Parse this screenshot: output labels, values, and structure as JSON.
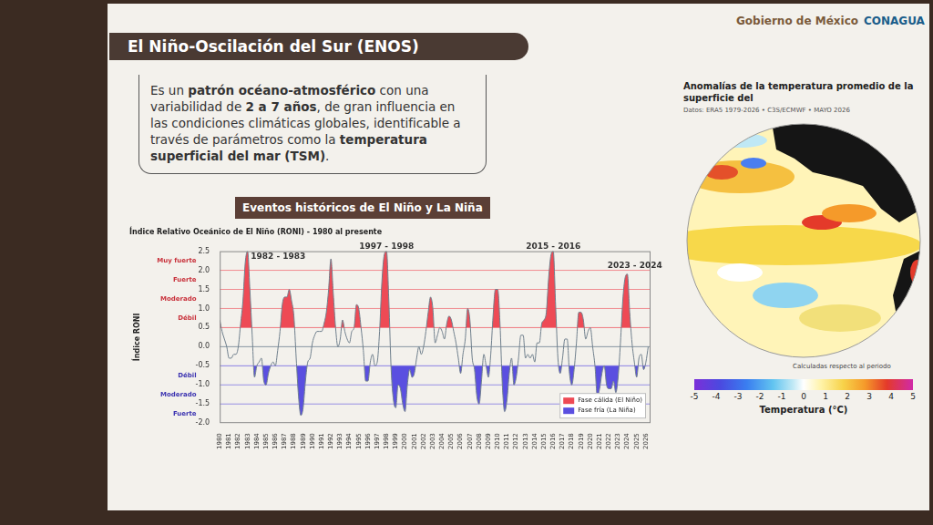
{
  "header": {
    "title": "El Niño-Oscilación del Sur (ENOS)",
    "logos": [
      "Gobierno de México",
      "CONAGUA"
    ]
  },
  "description": [
    {
      "text": "Es un ",
      "bold": false
    },
    {
      "text": "patrón océano-atmosférico",
      "bold": true
    },
    {
      "text": " con una variabilidad de ",
      "bold": false
    },
    {
      "text": "2 a 7 años",
      "bold": true
    },
    {
      "text": ", de gran influencia en las condiciones climáticas globales, identificable a través de parámetros como la ",
      "bold": false
    },
    {
      "text": "temperatura superficial del mar (TSM)",
      "bold": true
    },
    {
      "text": ".",
      "bold": false
    }
  ],
  "chart_heading": "Eventos históricos de El Niño y La Niña",
  "chart_data": {
    "type": "line",
    "title": "Índice Relativo Oceánico de El Niño (RONI) - 1980 al presente",
    "y_label": "Índice RONI",
    "color": "#6f7f8c",
    "x": [
      1980,
      1980.25,
      1980.5,
      1980.75,
      1981,
      1981.25,
      1981.5,
      1981.75,
      1982,
      1982.25,
      1982.5,
      1982.75,
      1983,
      1983.25,
      1983.5,
      1983.75,
      1984,
      1984.25,
      1984.5,
      1984.75,
      1985,
      1985.25,
      1985.5,
      1985.75,
      1986,
      1986.25,
      1986.5,
      1986.75,
      1987,
      1987.25,
      1987.5,
      1987.75,
      1988,
      1988.25,
      1988.5,
      1988.75,
      1989,
      1989.25,
      1989.5,
      1989.75,
      1990,
      1990.25,
      1990.5,
      1990.75,
      1991,
      1991.25,
      1991.5,
      1991.75,
      1992,
      1992.25,
      1992.5,
      1992.75,
      1993,
      1993.25,
      1993.5,
      1993.75,
      1994,
      1994.25,
      1994.5,
      1994.75,
      1995,
      1995.25,
      1995.5,
      1995.75,
      1996,
      1996.25,
      1996.5,
      1996.75,
      1997,
      1997.25,
      1997.5,
      1997.75,
      1998,
      1998.25,
      1998.5,
      1998.75,
      1999,
      1999.25,
      1999.5,
      1999.75,
      2000,
      2000.25,
      2000.5,
      2000.75,
      2001,
      2001.25,
      2001.5,
      2001.75,
      2002,
      2002.25,
      2002.5,
      2002.75,
      2003,
      2003.25,
      2003.5,
      2003.75,
      2004,
      2004.25,
      2004.5,
      2004.75,
      2005,
      2005.25,
      2005.5,
      2005.75,
      2006,
      2006.25,
      2006.5,
      2006.75,
      2007,
      2007.25,
      2007.5,
      2007.75,
      2008,
      2008.25,
      2008.5,
      2008.75,
      2009,
      2009.25,
      2009.5,
      2009.75,
      2010,
      2010.25,
      2010.5,
      2010.75,
      2011,
      2011.25,
      2011.5,
      2011.75,
      2012,
      2012.25,
      2012.5,
      2012.75,
      2013,
      2013.25,
      2013.5,
      2013.75,
      2014,
      2014.25,
      2014.5,
      2014.75,
      2015,
      2015.25,
      2015.5,
      2015.75,
      2016,
      2016.25,
      2016.5,
      2016.75,
      2017,
      2017.25,
      2017.5,
      2017.75,
      2018,
      2018.25,
      2018.5,
      2018.75,
      2019,
      2019.25,
      2019.5,
      2019.75,
      2020,
      2020.25,
      2020.5,
      2020.75,
      2021,
      2021.25,
      2021.5,
      2021.75,
      2022,
      2022.25,
      2022.5,
      2022.75,
      2023,
      2023.25,
      2023.5,
      2023.75,
      2024,
      2024.25,
      2024.5,
      2024.75,
      2025,
      2025.25,
      2025.5,
      2025.75,
      2026,
      2026.25
    ],
    "values": [
      0.7,
      0.4,
      0.2,
      0.0,
      -0.3,
      -0.3,
      -0.2,
      -0.2,
      0.0,
      0.6,
      1.2,
      2.2,
      2.5,
      1.5,
      0.3,
      -0.8,
      -0.5,
      -0.4,
      -0.3,
      -0.9,
      -1.0,
      -0.7,
      -0.5,
      -0.4,
      -0.5,
      -0.1,
      0.4,
      1.1,
      1.3,
      1.3,
      1.5,
      1.2,
      0.8,
      -0.3,
      -1.3,
      -1.8,
      -1.6,
      -0.9,
      -0.4,
      -0.3,
      0.1,
      0.3,
      0.4,
      0.4,
      0.4,
      0.6,
      0.9,
      1.5,
      2.3,
      1.4,
      0.5,
      0.0,
      0.2,
      0.7,
      0.4,
      0.2,
      0.1,
      0.4,
      0.5,
      1.1,
      1.0,
      0.5,
      -0.1,
      -0.9,
      -0.9,
      -0.4,
      -0.2,
      -0.5,
      -0.4,
      0.4,
      1.7,
      2.4,
      2.5,
      1.2,
      -0.6,
      -1.4,
      -1.6,
      -1.0,
      -1.1,
      -1.5,
      -1.7,
      -1.0,
      -0.6,
      -0.8,
      -0.7,
      -0.3,
      0.0,
      -0.2,
      0.0,
      0.4,
      0.9,
      1.3,
      1.0,
      0.1,
      0.3,
      0.5,
      0.4,
      0.2,
      0.6,
      0.8,
      0.7,
      0.4,
      0.1,
      -0.3,
      -0.7,
      -0.2,
      0.2,
      1.0,
      0.7,
      -0.3,
      -0.6,
      -1.3,
      -1.5,
      -0.9,
      -0.2,
      -0.5,
      -0.8,
      -0.2,
      0.8,
      1.5,
      1.5,
      0.6,
      -1.0,
      -1.7,
      -1.4,
      -0.7,
      -0.3,
      -1.0,
      -0.8,
      -0.3,
      0.3,
      0.3,
      -0.3,
      -0.2,
      -0.3,
      -0.2,
      -0.4,
      0.1,
      0.1,
      0.6,
      0.7,
      0.9,
      1.8,
      2.4,
      2.5,
      1.1,
      -0.3,
      -0.7,
      -0.3,
      0.2,
      0.2,
      -0.7,
      -1.0,
      -0.6,
      0.1,
      0.9,
      0.9,
      0.7,
      0.2,
      0.4,
      0.5,
      0.0,
      -0.5,
      -1.3,
      -1.1,
      -0.7,
      -0.5,
      -1.0,
      -1.1,
      -1.1,
      -0.9,
      -1.2,
      -0.8,
      0.1,
      1.2,
      1.8,
      1.9,
      0.9,
      0.1,
      -0.4,
      -0.8,
      -0.3,
      -0.2,
      -0.6,
      -0.4,
      0.0
    ],
    "xlim": [
      1980,
      2026.5
    ],
    "xticks": [
      1980,
      1981,
      1982,
      1983,
      1984,
      1985,
      1986,
      1987,
      1988,
      1989,
      1990,
      1991,
      1992,
      1993,
      1994,
      1995,
      1996,
      1997,
      1998,
      1999,
      2000,
      2001,
      2002,
      2003,
      2004,
      2005,
      2006,
      2007,
      2008,
      2009,
      2010,
      2011,
      2012,
      2013,
      2014,
      2015,
      2016,
      2017,
      2018,
      2019,
      2020,
      2021,
      2022,
      2023,
      2024,
      2025,
      2026
    ],
    "ylim": [
      -2,
      2.5
    ],
    "yticks": [
      {
        "value": -2,
        "label": "-2.0"
      },
      {
        "value": -1.5,
        "label": "-1.5"
      },
      {
        "value": -1,
        "label": "-1.0"
      },
      {
        "value": -0.5,
        "label": "-0.5"
      },
      {
        "value": 0,
        "label": "0.0"
      },
      0.5,
      {
        "value": 1,
        "label": "1.0"
      },
      1.5,
      {
        "value": 2,
        "label": "2.0"
      },
      2.5
    ],
    "grid": false,
    "reference_lines": {
      "warm": [
        0.5,
        1.0,
        1.5,
        2.0
      ],
      "neutral": [
        0
      ],
      "cold": [
        -0.5,
        -1.0,
        -1.5
      ]
    },
    "phases": [
      {
        "name": "Fase cálida (El Niño)",
        "color": "#ee4a55"
      },
      {
        "name": "Fase fría (La Niña)",
        "color": "#5a4fe0"
      }
    ],
    "intensity_labels": [
      {
        "text": "Muy fuerte",
        "y": 2.25
      },
      {
        "text": "Fuerte",
        "y": 1.75
      },
      {
        "text": "Moderado",
        "y": 1.25
      },
      {
        "text": "Débil",
        "y": 0.75
      },
      {
        "text": "Débil",
        "y": -0.75
      },
      {
        "text": "Moderado",
        "y": -1.25
      },
      {
        "text": "Fuerte",
        "y": -1.75
      }
    ],
    "annotations": [
      {
        "text": "1982 - 1983",
        "x": 1986.3,
        "y": 2.35
      },
      {
        "text": "1997 - 1998",
        "x": 1998.0,
        "y": 2.62
      },
      {
        "text": "2015 - 2016",
        "x": 2016.0,
        "y": 2.62
      },
      {
        "text": "2023 - 2024",
        "x": 2024.8,
        "y": 2.12
      }
    ],
    "legend": "lower right"
  },
  "map_panel": {
    "title": "Anomalías de la temperatura promedio de la superficie del",
    "subtitle": "Datos: ERA5 1979-2026 • C3S/ECMWF • MAYO 2026",
    "note": "Calculadas respecto al periodo",
    "colorbar": {
      "range": [
        -5,
        5
      ],
      "ticks": [
        -5,
        -4,
        -3,
        -2,
        -1,
        0,
        1,
        2,
        3,
        4,
        5
      ],
      "title": "Temperatura (°C)"
    }
  }
}
